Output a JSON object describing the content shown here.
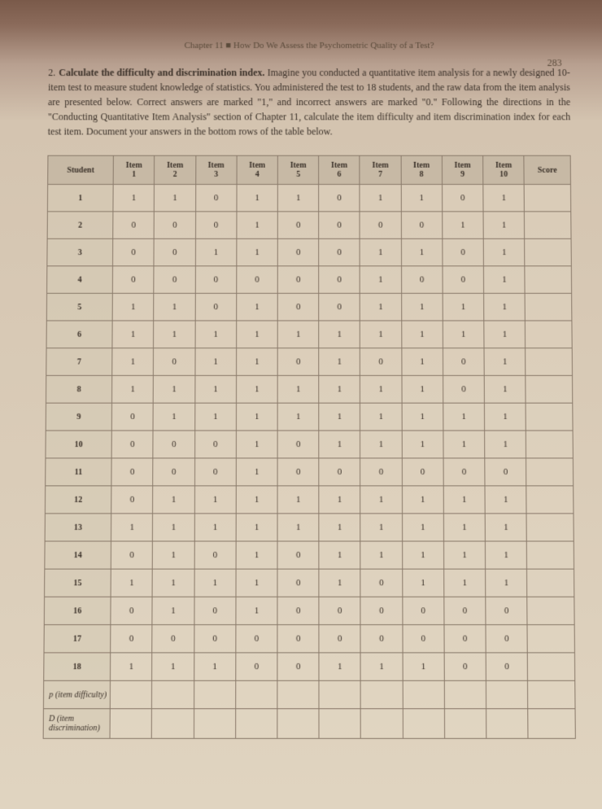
{
  "header": {
    "chapter": "Chapter 11 ■ How Do We Assess the Psychometric Quality of a Test?",
    "page_number": "283"
  },
  "question": {
    "number": "2.",
    "bold_lead": "Calculate the difficulty and discrimination index.",
    "body": " Imagine you conducted a quantitative item analysis for a newly designed 10-item test to measure student knowledge of statistics. You administered the test to 18 students, and the raw data from the item analysis are presented below. Correct answers are marked \"1,\" and incorrect answers are marked \"0.\" Following the directions in the \"Conducting Quantitative Item Analysis\" section of Chapter 11, calculate the item difficulty and item discrimination index for each test item. Document your answers in the bottom rows of the table below."
  },
  "table": {
    "columns": [
      "Student",
      "Item 1",
      "Item 2",
      "Item 3",
      "Item 4",
      "Item 5",
      "Item 6",
      "Item 7",
      "Item 8",
      "Item 9",
      "Item 10",
      "Score"
    ],
    "row_labels": [
      "1",
      "2",
      "3",
      "4",
      "5",
      "6",
      "7",
      "8",
      "9",
      "10",
      "11",
      "12",
      "13",
      "14",
      "15",
      "16",
      "17",
      "18"
    ],
    "data": [
      [
        "1",
        "1",
        "0",
        "1",
        "1",
        "0",
        "1",
        "1",
        "0",
        "1",
        ""
      ],
      [
        "0",
        "0",
        "0",
        "1",
        "0",
        "0",
        "0",
        "0",
        "1",
        "1",
        ""
      ],
      [
        "0",
        "0",
        "1",
        "1",
        "0",
        "0",
        "1",
        "1",
        "0",
        "1",
        ""
      ],
      [
        "0",
        "0",
        "0",
        "0",
        "0",
        "0",
        "1",
        "0",
        "0",
        "1",
        ""
      ],
      [
        "1",
        "1",
        "0",
        "1",
        "0",
        "0",
        "1",
        "1",
        "1",
        "1",
        ""
      ],
      [
        "1",
        "1",
        "1",
        "1",
        "1",
        "1",
        "1",
        "1",
        "1",
        "1",
        ""
      ],
      [
        "1",
        "0",
        "1",
        "1",
        "0",
        "1",
        "0",
        "1",
        "0",
        "1",
        ""
      ],
      [
        "1",
        "1",
        "1",
        "1",
        "1",
        "1",
        "1",
        "1",
        "0",
        "1",
        ""
      ],
      [
        "0",
        "1",
        "1",
        "1",
        "1",
        "1",
        "1",
        "1",
        "1",
        "1",
        ""
      ],
      [
        "0",
        "0",
        "0",
        "1",
        "0",
        "1",
        "1",
        "1",
        "1",
        "1",
        ""
      ],
      [
        "0",
        "0",
        "0",
        "1",
        "0",
        "0",
        "0",
        "0",
        "0",
        "0",
        ""
      ],
      [
        "0",
        "1",
        "1",
        "1",
        "1",
        "1",
        "1",
        "1",
        "1",
        "1",
        ""
      ],
      [
        "1",
        "1",
        "1",
        "1",
        "1",
        "1",
        "1",
        "1",
        "1",
        "1",
        ""
      ],
      [
        "0",
        "1",
        "0",
        "1",
        "0",
        "1",
        "1",
        "1",
        "1",
        "1",
        ""
      ],
      [
        "1",
        "1",
        "1",
        "1",
        "0",
        "1",
        "0",
        "1",
        "1",
        "1",
        ""
      ],
      [
        "0",
        "1",
        "0",
        "1",
        "0",
        "0",
        "0",
        "0",
        "0",
        "0",
        ""
      ],
      [
        "0",
        "0",
        "0",
        "0",
        "0",
        "0",
        "0",
        "0",
        "0",
        "0",
        ""
      ],
      [
        "1",
        "1",
        "1",
        "0",
        "0",
        "1",
        "1",
        "1",
        "0",
        "0",
        ""
      ]
    ],
    "footer_rows": [
      {
        "label": "p (item difficulty)",
        "cells": [
          "",
          "",
          "",
          "",
          "",
          "",
          "",
          "",
          "",
          "",
          ""
        ]
      },
      {
        "label": "D (item discrimination)",
        "cells": [
          "",
          "",
          "",
          "",
          "",
          "",
          "",
          "",
          "",
          "",
          ""
        ]
      }
    ]
  }
}
